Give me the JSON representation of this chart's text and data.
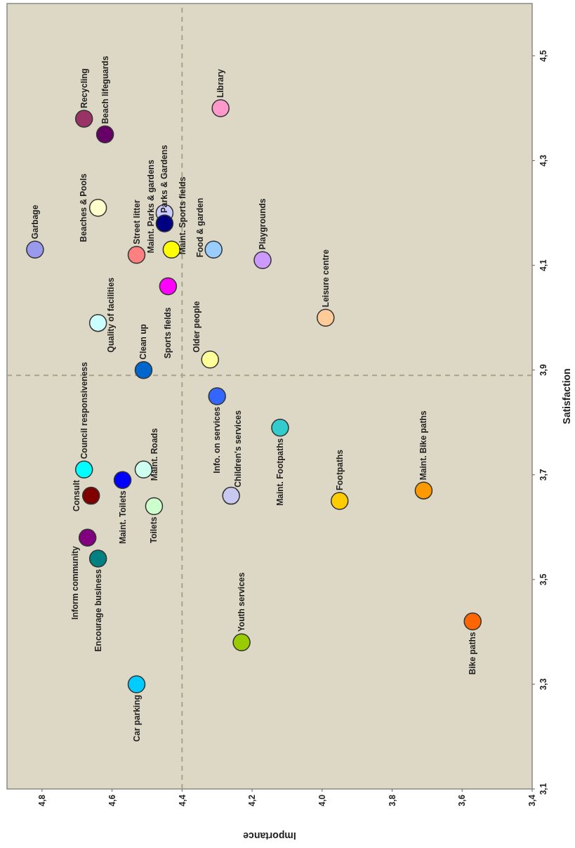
{
  "chart_data": {
    "type": "scatter",
    "xlabel": "Importance",
    "ylabel": "Satisfaction",
    "xlim": [
      4.9,
      3.4
    ],
    "ylim": [
      3.1,
      4.6
    ],
    "xticks": [
      {
        "value": 4.8,
        "label": "4,8"
      },
      {
        "value": 4.6,
        "label": "4,6"
      },
      {
        "value": 4.4,
        "label": "4,4"
      },
      {
        "value": 4.2,
        "label": "4,2"
      },
      {
        "value": 4.0,
        "label": "4,0"
      },
      {
        "value": 3.8,
        "label": "3,8"
      },
      {
        "value": 3.6,
        "label": "3,6"
      },
      {
        "value": 3.4,
        "label": "3,4"
      }
    ],
    "yticks": [
      {
        "value": 3.1,
        "label": "3,1"
      },
      {
        "value": 3.3,
        "label": "3,3"
      },
      {
        "value": 3.5,
        "label": "3,5"
      },
      {
        "value": 3.7,
        "label": "3,7"
      },
      {
        "value": 3.9,
        "label": "3,9"
      },
      {
        "value": 4.1,
        "label": "4,1"
      },
      {
        "value": 4.3,
        "label": "4,3"
      },
      {
        "value": 4.5,
        "label": "4,5"
      }
    ],
    "ref_lines": [
      {
        "axis": "x",
        "value": 4.4,
        "color": "#a8a288",
        "line_style": "dashed"
      },
      {
        "axis": "y",
        "value": 3.89,
        "color": "#a8a288",
        "line_style": "dashed"
      }
    ],
    "grid": false,
    "marker": "circle",
    "series": [
      {
        "name": "Garbage",
        "color": "#9999ee",
        "x": [
          4.82
        ],
        "values": [
          4.13
        ]
      },
      {
        "name": "Beaches & Pools",
        "color": "#ffffcc",
        "x": [
          4.64
        ],
        "values": [
          4.21
        ]
      },
      {
        "name": "Recycling",
        "color": "#993366",
        "x": [
          4.68
        ],
        "values": [
          4.38
        ]
      },
      {
        "name": "Beach lifeguards",
        "color": "#660066",
        "x": [
          4.62
        ],
        "values": [
          4.35
        ]
      },
      {
        "name": "Library",
        "color": "#ff99cc",
        "x": [
          4.29
        ],
        "values": [
          4.4
        ]
      },
      {
        "name": "Maint. Parks & gardens",
        "color": "#ccccff",
        "x": [
          4.45
        ],
        "values": [
          4.2
        ]
      },
      {
        "name": "Parks & Gardens",
        "color": "#000080",
        "x": [
          4.45
        ],
        "values": [
          4.18
        ]
      },
      {
        "name": "Street litter",
        "color": "#ff8080",
        "x": [
          4.53
        ],
        "values": [
          4.12
        ]
      },
      {
        "name": "Maint. Sports fields",
        "color": "#ffff00",
        "x": [
          4.43
        ],
        "values": [
          4.13
        ]
      },
      {
        "name": "Food & garden",
        "color": "#99ccff",
        "x": [
          4.31
        ],
        "values": [
          4.13
        ]
      },
      {
        "name": "Playgrounds",
        "color": "#cc99ff",
        "x": [
          4.17
        ],
        "values": [
          4.11
        ]
      },
      {
        "name": "Sports fields",
        "color": "#ff00ff",
        "x": [
          4.44
        ],
        "values": [
          4.06
        ]
      },
      {
        "name": "Quality of facilities",
        "color": "#ccffff",
        "x": [
          4.64
        ],
        "values": [
          3.99
        ]
      },
      {
        "name": "Clean up",
        "color": "#0066cc",
        "x": [
          4.51
        ],
        "values": [
          3.9
        ]
      },
      {
        "name": "Older people",
        "color": "#ffff99",
        "x": [
          4.32
        ],
        "values": [
          3.92
        ]
      },
      {
        "name": "Leisure centre",
        "color": "#ffcc99",
        "x": [
          3.99
        ],
        "values": [
          4.0
        ]
      },
      {
        "name": "Info. on services",
        "color": "#3366ff",
        "x": [
          4.3
        ],
        "values": [
          3.85
        ]
      },
      {
        "name": "Maint. Footpaths",
        "color": "#33cccc",
        "x": [
          4.12
        ],
        "values": [
          3.79
        ]
      },
      {
        "name": "Council responsiveness",
        "color": "#00ffff",
        "x": [
          4.68
        ],
        "values": [
          3.71
        ]
      },
      {
        "name": "Maint. Roads",
        "color": "#ccffee",
        "x": [
          4.51
        ],
        "values": [
          3.71
        ]
      },
      {
        "name": "Maint. Toilets",
        "color": "#0000ff",
        "x": [
          4.57
        ],
        "values": [
          3.69
        ]
      },
      {
        "name": "Consult",
        "color": "#800000",
        "x": [
          4.66
        ],
        "values": [
          3.66
        ]
      },
      {
        "name": "Children's services",
        "color": "#c8c8f0",
        "x": [
          4.26
        ],
        "values": [
          3.66
        ]
      },
      {
        "name": "Toilets",
        "color": "#ccffcc",
        "x": [
          4.48
        ],
        "values": [
          3.64
        ]
      },
      {
        "name": "Footpaths",
        "color": "#ffcc00",
        "x": [
          3.95
        ],
        "values": [
          3.65
        ]
      },
      {
        "name": "Maint. Bike paths",
        "color": "#ff9900",
        "x": [
          3.71
        ],
        "values": [
          3.67
        ]
      },
      {
        "name": "Inform community",
        "color": "#800080",
        "x": [
          4.67
        ],
        "values": [
          3.58
        ]
      },
      {
        "name": "Encourage business",
        "color": "#008080",
        "x": [
          4.64
        ],
        "values": [
          3.54
        ]
      },
      {
        "name": "Car parking",
        "color": "#00ccff",
        "x": [
          4.53
        ],
        "values": [
          3.3
        ]
      },
      {
        "name": "Youth services",
        "color": "#99cc00",
        "x": [
          4.23
        ],
        "values": [
          3.38
        ]
      },
      {
        "name": "Bike paths",
        "color": "#ff6600",
        "x": [
          3.57
        ],
        "values": [
          3.42
        ]
      }
    ]
  }
}
